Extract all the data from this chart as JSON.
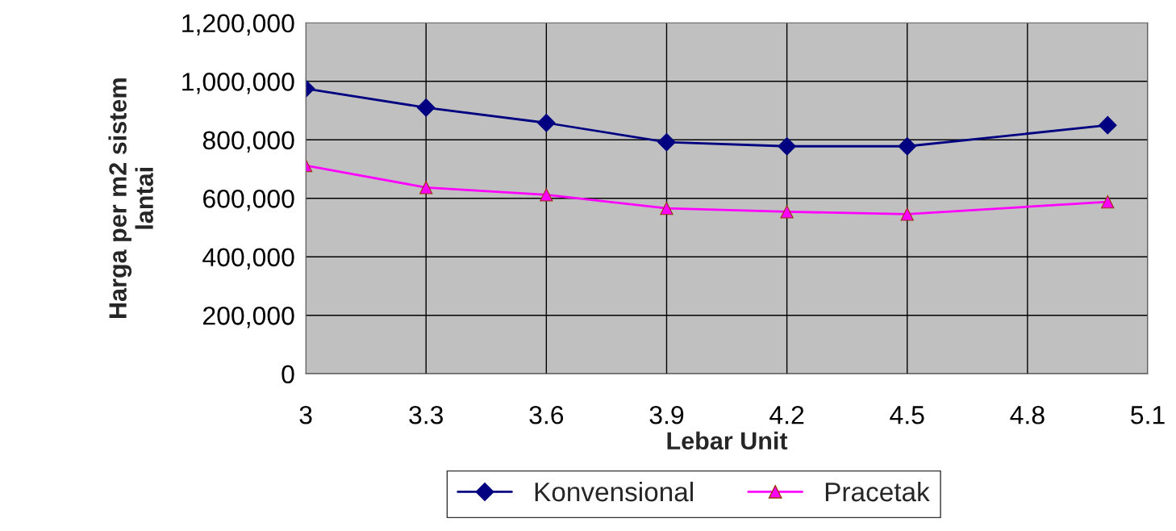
{
  "chart_data": {
    "type": "line",
    "xlabel": "Lebar Unit",
    "ylabel": "Harga per m2 sistem\nlantai",
    "xlim": [
      3,
      5.1
    ],
    "xticks": [
      3,
      3.3,
      3.6,
      3.9,
      4.2,
      4.5,
      4.8,
      5.1
    ],
    "ylim": [
      0,
      1200000
    ],
    "yticks": [
      {
        "value": 0,
        "label": "0"
      },
      {
        "value": 200000,
        "label": "200,000"
      },
      {
        "value": 400000,
        "label": "400,000"
      },
      {
        "value": 600000,
        "label": "600,000"
      },
      {
        "value": 800000,
        "label": "800,000"
      },
      {
        "value": 1000000,
        "label": "1,000,000"
      },
      {
        "value": 1200000,
        "label": "1,200,000"
      }
    ],
    "grid": true,
    "legend": "bottom",
    "series": [
      {
        "name": "Konvensional",
        "color": "#000080",
        "marker": "diamond",
        "x": [
          3,
          3.3,
          3.6,
          3.9,
          4.2,
          4.5,
          5.0
        ],
        "values": [
          975000,
          910000,
          858000,
          792000,
          778000,
          778000,
          850000
        ]
      },
      {
        "name": "Pracetak",
        "color": "#ff00ff",
        "marker": "triangle",
        "x": [
          3,
          3.3,
          3.6,
          3.9,
          4.2,
          4.5,
          5.0
        ],
        "values": [
          712000,
          637000,
          612000,
          566000,
          554000,
          546000,
          588000
        ]
      }
    ]
  }
}
